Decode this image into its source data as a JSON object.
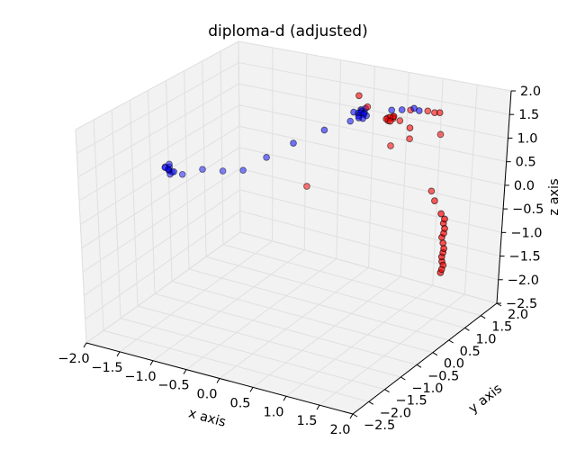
{
  "chart_data": {
    "type": "scatter3d",
    "title": "diploma-d (adjusted)",
    "xlabel": "x axis",
    "ylabel": "y axis",
    "zlabel": "z axis",
    "xticks": [
      "−2.0",
      "−1.5",
      "−1.0",
      "−0.5",
      "0.0",
      "0.5",
      "1.0",
      "1.5",
      "2.0"
    ],
    "yticks": [
      "−2.5",
      "−2.0",
      "−1.5",
      "−1.0",
      "−0.5",
      "0.0",
      "0.5",
      "1.0",
      "1.5",
      "2.0"
    ],
    "zticks": [
      "−2.5",
      "−2.0",
      "−1.5",
      "−1.0",
      "−0.5",
      "0.0",
      "0.5",
      "1.0",
      "1.5",
      "2.0"
    ],
    "xlim": [
      -2.0,
      2.0
    ],
    "ylim": [
      -2.5,
      2.0
    ],
    "zlim": [
      -2.5,
      2.0
    ],
    "grid": true,
    "colors": {
      "blue": "#0000ff",
      "red": "#ff0000",
      "pane": "#f2f2f2",
      "grid": "#e0e0e0"
    },
    "series": [
      {
        "color": "blue",
        "points": [
          [
            -2.0,
            0.0,
            0.0
          ],
          [
            -2.02,
            0.05,
            -0.05
          ],
          [
            -1.98,
            -0.05,
            0.05
          ],
          [
            -2.0,
            0.1,
            -0.1
          ],
          [
            -2.05,
            0.0,
            0.05
          ],
          [
            -1.95,
            0.05,
            -0.05
          ],
          [
            -2.0,
            -0.1,
            0.1
          ],
          [
            -2.03,
            0.08,
            0.02
          ],
          [
            -1.97,
            -0.02,
            -0.08
          ],
          [
            -2.0,
            0.02,
            0.12
          ],
          [
            -1.85,
            0.1,
            -0.1
          ],
          [
            -1.6,
            0.2,
            0.05
          ],
          [
            -1.35,
            0.3,
            0.05
          ],
          [
            -1.1,
            0.4,
            0.1
          ],
          [
            -0.75,
            0.4,
            0.5
          ],
          [
            -0.3,
            0.3,
            1.0
          ],
          [
            0.05,
            0.5,
            1.3
          ],
          [
            0.3,
            0.75,
            1.45
          ],
          [
            0.55,
            0.5,
            1.75
          ],
          [
            0.55,
            0.55,
            1.8
          ],
          [
            0.58,
            0.6,
            1.78
          ],
          [
            0.52,
            0.62,
            1.82
          ],
          [
            0.56,
            0.48,
            1.72
          ],
          [
            0.5,
            0.58,
            1.76
          ],
          [
            0.6,
            0.52,
            1.7
          ],
          [
            0.57,
            0.65,
            1.85
          ],
          [
            0.45,
            0.55,
            1.78
          ],
          [
            0.62,
            0.58,
            1.74
          ],
          [
            0.54,
            0.6,
            1.81
          ],
          [
            0.59,
            0.56,
            1.77
          ],
          [
            0.85,
            0.85,
            1.8
          ],
          [
            1.0,
            0.85,
            1.85
          ],
          [
            1.15,
            0.9,
            1.9
          ],
          [
            1.25,
            0.85,
            1.9
          ]
        ]
      },
      {
        "color": "red",
        "points": [
          [
            0.65,
            0.3,
            2.3
          ],
          [
            0.65,
            0.55,
            1.95
          ],
          [
            0.95,
            0.5,
            1.8
          ],
          [
            0.98,
            0.55,
            1.82
          ],
          [
            1.0,
            0.6,
            1.78
          ],
          [
            0.97,
            0.52,
            1.76
          ],
          [
            1.02,
            0.58,
            1.84
          ],
          [
            0.99,
            0.62,
            1.8
          ],
          [
            0.94,
            0.56,
            1.79
          ],
          [
            1.01,
            0.5,
            1.77
          ],
          [
            1.05,
            0.7,
            1.7
          ],
          [
            1.25,
            0.6,
            1.65
          ],
          [
            1.1,
            0.9,
            1.85
          ],
          [
            1.35,
            0.9,
            1.9
          ],
          [
            1.5,
            0.8,
            1.95
          ],
          [
            1.6,
            0.75,
            2.0
          ],
          [
            0.9,
            0.75,
            1.1
          ],
          [
            1.15,
            0.8,
            1.3
          ],
          [
            1.5,
            1.0,
            1.4
          ],
          [
            -0.2,
            0.5,
            0.0
          ],
          [
            1.5,
            0.8,
            0.3
          ],
          [
            1.7,
            0.5,
            0.3
          ],
          [
            1.95,
            0.2,
            0.25
          ],
          [
            1.98,
            0.22,
            0.05
          ],
          [
            1.99,
            0.22,
            -0.15
          ],
          [
            1.99,
            0.21,
            -0.35
          ],
          [
            1.99,
            0.22,
            -0.55
          ],
          [
            1.97,
            0.24,
            -0.75
          ],
          [
            1.98,
            0.22,
            -0.9
          ],
          [
            2.0,
            0.21,
            0.15
          ],
          [
            2.0,
            0.22,
            -0.05
          ],
          [
            1.96,
            0.23,
            -0.25
          ],
          [
            2.01,
            0.2,
            -0.45
          ],
          [
            1.97,
            0.23,
            -0.65
          ],
          [
            1.99,
            0.24,
            -0.82
          ],
          [
            1.96,
            0.23,
            -0.98
          ]
        ]
      }
    ]
  }
}
